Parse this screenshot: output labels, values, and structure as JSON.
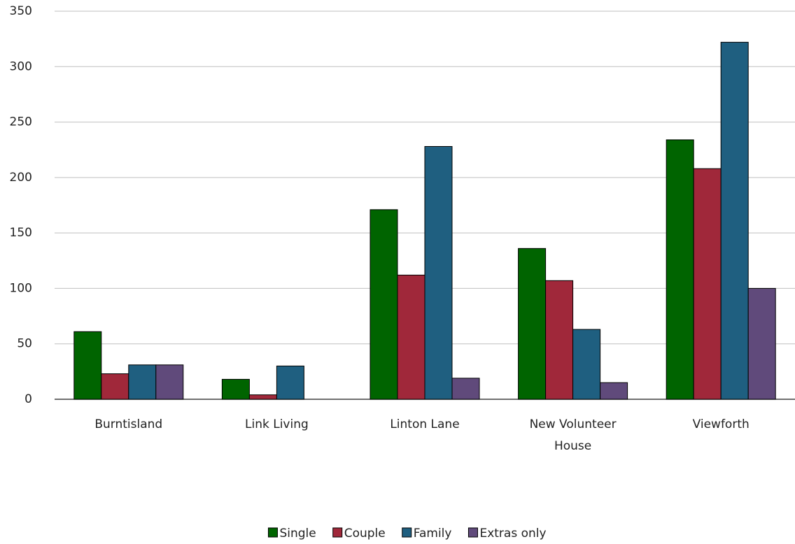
{
  "chart_data": {
    "type": "bar",
    "categories": [
      "Burntisland",
      "Link Living",
      "Linton Lane",
      "New Volunteer House",
      "Viewforth"
    ],
    "series": [
      {
        "name": "Single",
        "color": "#006400",
        "values": [
          61,
          18,
          171,
          136,
          234
        ]
      },
      {
        "name": "Couple",
        "color": "#a0283a",
        "values": [
          23,
          4,
          112,
          107,
          208
        ]
      },
      {
        "name": "Family",
        "color": "#1f5f80",
        "values": [
          31,
          30,
          228,
          63,
          322
        ]
      },
      {
        "name": "Extras only",
        "color": "#604a7b",
        "values": [
          31,
          0,
          19,
          15,
          100
        ]
      }
    ],
    "ylim": [
      0,
      350
    ],
    "yticks": [
      0,
      50,
      100,
      150,
      200,
      250,
      300,
      350
    ],
    "grid": true
  }
}
